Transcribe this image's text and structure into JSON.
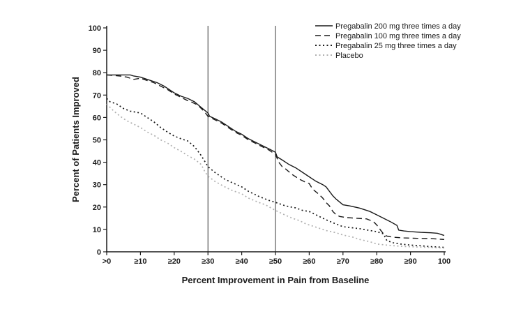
{
  "figure": {
    "background": "#ffffff",
    "axis_color": "#1a1a1a",
    "reference_line_color": "#3a3a3a"
  },
  "chart_data": {
    "type": "line",
    "title": "",
    "xlabel": "Percent Improvement in Pain from Baseline",
    "ylabel": "Percent of Patients Improved",
    "xlim": [
      0,
      100
    ],
    "ylim": [
      0,
      100
    ],
    "grid": false,
    "legend_position": "top-right",
    "x_ticks": [
      {
        "value": 0,
        "label": ">0"
      },
      {
        "value": 10,
        "label": "≥10"
      },
      {
        "value": 20,
        "label": "≥20"
      },
      {
        "value": 30,
        "label": "≥30"
      },
      {
        "value": 40,
        "label": "≥40"
      },
      {
        "value": 50,
        "label": "≥50"
      },
      {
        "value": 60,
        "label": "≥60"
      },
      {
        "value": 70,
        "label": "≥70"
      },
      {
        "value": 80,
        "label": "≥80"
      },
      {
        "value": 90,
        "label": "≥90"
      },
      {
        "value": 100,
        "label": "100"
      }
    ],
    "y_ticks": [
      {
        "value": 0,
        "label": "0"
      },
      {
        "value": 10,
        "label": "10"
      },
      {
        "value": 20,
        "label": "20"
      },
      {
        "value": 30,
        "label": "30"
      },
      {
        "value": 40,
        "label": "40"
      },
      {
        "value": 50,
        "label": "50"
      },
      {
        "value": 60,
        "label": "60"
      },
      {
        "value": 70,
        "label": "70"
      },
      {
        "value": 80,
        "label": "80"
      },
      {
        "value": 90,
        "label": "90"
      },
      {
        "value": 100,
        "label": "100"
      }
    ],
    "reference_lines_x": [
      30,
      50
    ],
    "series": [
      {
        "name": "Pregabalin 200 mg three times a day",
        "line_style": "solid",
        "color": "#1a1a1a",
        "points": [
          [
            0,
            79
          ],
          [
            4,
            79
          ],
          [
            7,
            79
          ],
          [
            8,
            78.5
          ],
          [
            10,
            78
          ],
          [
            12,
            77
          ],
          [
            14,
            76
          ],
          [
            15,
            75.5
          ],
          [
            17,
            74
          ],
          [
            19,
            72
          ],
          [
            20,
            71
          ],
          [
            22,
            69.5
          ],
          [
            24,
            68.5
          ],
          [
            26,
            67
          ],
          [
            28,
            64.5
          ],
          [
            30,
            62
          ],
          [
            30.5,
            60.5
          ],
          [
            32,
            59.5
          ],
          [
            34,
            58
          ],
          [
            36,
            56
          ],
          [
            38,
            54
          ],
          [
            40,
            52.5
          ],
          [
            42,
            50.5
          ],
          [
            44,
            49
          ],
          [
            46,
            47.5
          ],
          [
            48,
            46
          ],
          [
            50,
            44.5
          ],
          [
            50.5,
            42.4
          ],
          [
            52,
            41
          ],
          [
            54,
            39
          ],
          [
            56,
            37.5
          ],
          [
            58,
            35.5
          ],
          [
            60,
            33.5
          ],
          [
            62,
            31.5
          ],
          [
            64,
            30
          ],
          [
            65,
            29
          ],
          [
            66,
            27
          ],
          [
            67,
            25
          ],
          [
            68,
            23.5
          ],
          [
            70,
            21
          ],
          [
            72,
            20.5
          ],
          [
            75,
            19.5
          ],
          [
            78,
            18
          ],
          [
            80,
            16.5
          ],
          [
            82,
            15
          ],
          [
            84,
            13.5
          ],
          [
            86,
            11.8
          ],
          [
            86.5,
            9.7
          ],
          [
            88,
            9.3
          ],
          [
            90,
            9
          ],
          [
            93,
            8.7
          ],
          [
            96,
            8.5
          ],
          [
            98,
            8.3
          ],
          [
            100,
            7.3
          ]
        ]
      },
      {
        "name": "Pregabalin 100 mg three times a day",
        "line_style": "dashed",
        "color": "#1a1a1a",
        "points": [
          [
            0,
            79
          ],
          [
            4,
            78.5
          ],
          [
            6,
            78
          ],
          [
            8,
            77
          ],
          [
            10,
            77.5
          ],
          [
            12,
            76.5
          ],
          [
            14,
            75.5
          ],
          [
            16,
            74
          ],
          [
            18,
            72.5
          ],
          [
            20,
            70.5
          ],
          [
            22,
            69
          ],
          [
            24,
            67.5
          ],
          [
            25,
            67
          ],
          [
            27,
            65.5
          ],
          [
            29,
            62.5
          ],
          [
            30,
            60.5
          ],
          [
            32,
            59
          ],
          [
            34,
            57.5
          ],
          [
            36,
            55.5
          ],
          [
            38,
            53.5
          ],
          [
            40,
            52
          ],
          [
            42,
            50
          ],
          [
            44,
            48.5
          ],
          [
            46,
            47
          ],
          [
            48,
            45.5
          ],
          [
            50,
            43.5
          ],
          [
            51,
            40
          ],
          [
            52,
            38
          ],
          [
            53,
            37
          ],
          [
            55,
            34.5
          ],
          [
            57,
            32.5
          ],
          [
            59,
            31
          ],
          [
            60,
            30.5
          ],
          [
            61,
            28
          ],
          [
            63,
            25.5
          ],
          [
            64,
            24
          ],
          [
            65,
            22
          ],
          [
            66,
            20.5
          ],
          [
            67,
            18
          ],
          [
            68,
            16.5
          ],
          [
            69,
            15.8
          ],
          [
            71,
            15.3
          ],
          [
            74,
            15
          ],
          [
            77,
            14.7
          ],
          [
            79,
            13.5
          ],
          [
            80,
            12
          ],
          [
            81,
            10
          ],
          [
            82,
            8
          ],
          [
            83,
            7
          ],
          [
            85,
            6.5
          ],
          [
            88,
            6.2
          ],
          [
            92,
            6
          ],
          [
            96,
            5.9
          ],
          [
            100,
            5.5
          ]
        ]
      },
      {
        "name": "Pregabalin 25 mg three times a day",
        "line_style": "dotted",
        "color": "#1a1a1a",
        "points": [
          [
            0,
            68.5
          ],
          [
            1,
            67
          ],
          [
            3,
            66
          ],
          [
            5,
            64
          ],
          [
            7,
            62.8
          ],
          [
            10,
            62
          ],
          [
            12,
            60
          ],
          [
            14,
            58
          ],
          [
            16,
            55.5
          ],
          [
            18,
            53.5
          ],
          [
            20,
            51.7
          ],
          [
            22,
            50.5
          ],
          [
            24,
            49.5
          ],
          [
            26,
            47
          ],
          [
            27,
            45
          ],
          [
            28,
            43
          ],
          [
            29,
            40.5
          ],
          [
            30,
            38
          ],
          [
            32,
            35.5
          ],
          [
            35,
            32.4
          ],
          [
            37,
            31
          ],
          [
            40,
            29
          ],
          [
            42,
            27
          ],
          [
            45,
            24.8
          ],
          [
            48,
            23
          ],
          [
            50,
            22.1
          ],
          [
            53,
            20.5
          ],
          [
            56,
            19.6
          ],
          [
            58,
            18.5
          ],
          [
            60,
            18
          ],
          [
            62,
            16.5
          ],
          [
            65,
            14.3
          ],
          [
            67,
            13
          ],
          [
            70,
            11.2
          ],
          [
            73,
            10.7
          ],
          [
            75,
            10.3
          ],
          [
            78,
            9.5
          ],
          [
            80,
            9
          ],
          [
            82,
            8
          ],
          [
            83,
            5
          ],
          [
            85,
            4
          ],
          [
            87,
            3.5
          ],
          [
            90,
            3
          ],
          [
            93,
            2.7
          ],
          [
            96,
            2.3
          ],
          [
            100,
            2
          ]
        ]
      },
      {
        "name": "Placebo",
        "line_style": "dotted",
        "color": "#b0b0b0",
        "points": [
          [
            0,
            66
          ],
          [
            2,
            63
          ],
          [
            4,
            60.5
          ],
          [
            6,
            58.5
          ],
          [
            8,
            57
          ],
          [
            10,
            55.5
          ],
          [
            12,
            53.5
          ],
          [
            14,
            52
          ],
          [
            16,
            50
          ],
          [
            18,
            48.6
          ],
          [
            20,
            46.5
          ],
          [
            22,
            44.9
          ],
          [
            24,
            43
          ],
          [
            26,
            41.4
          ],
          [
            28,
            39
          ],
          [
            29,
            36
          ],
          [
            30,
            33.8
          ],
          [
            32,
            31.5
          ],
          [
            35,
            29
          ],
          [
            37,
            27.5
          ],
          [
            40,
            25.9
          ],
          [
            42,
            24
          ],
          [
            45,
            22.1
          ],
          [
            47,
            21
          ],
          [
            50,
            18.5
          ],
          [
            52,
            17
          ],
          [
            55,
            15
          ],
          [
            57,
            14
          ],
          [
            59,
            12.5
          ],
          [
            62,
            11
          ],
          [
            65,
            9.5
          ],
          [
            68,
            8.5
          ],
          [
            70,
            7.5
          ],
          [
            73,
            6.5
          ],
          [
            75,
            5.5
          ],
          [
            78,
            4.5
          ],
          [
            80,
            3.5
          ],
          [
            83,
            3
          ],
          [
            85,
            2.7
          ],
          [
            88,
            2.4
          ],
          [
            91,
            2.2
          ],
          [
            95,
            2
          ],
          [
            100,
            1.7
          ]
        ]
      }
    ]
  }
}
